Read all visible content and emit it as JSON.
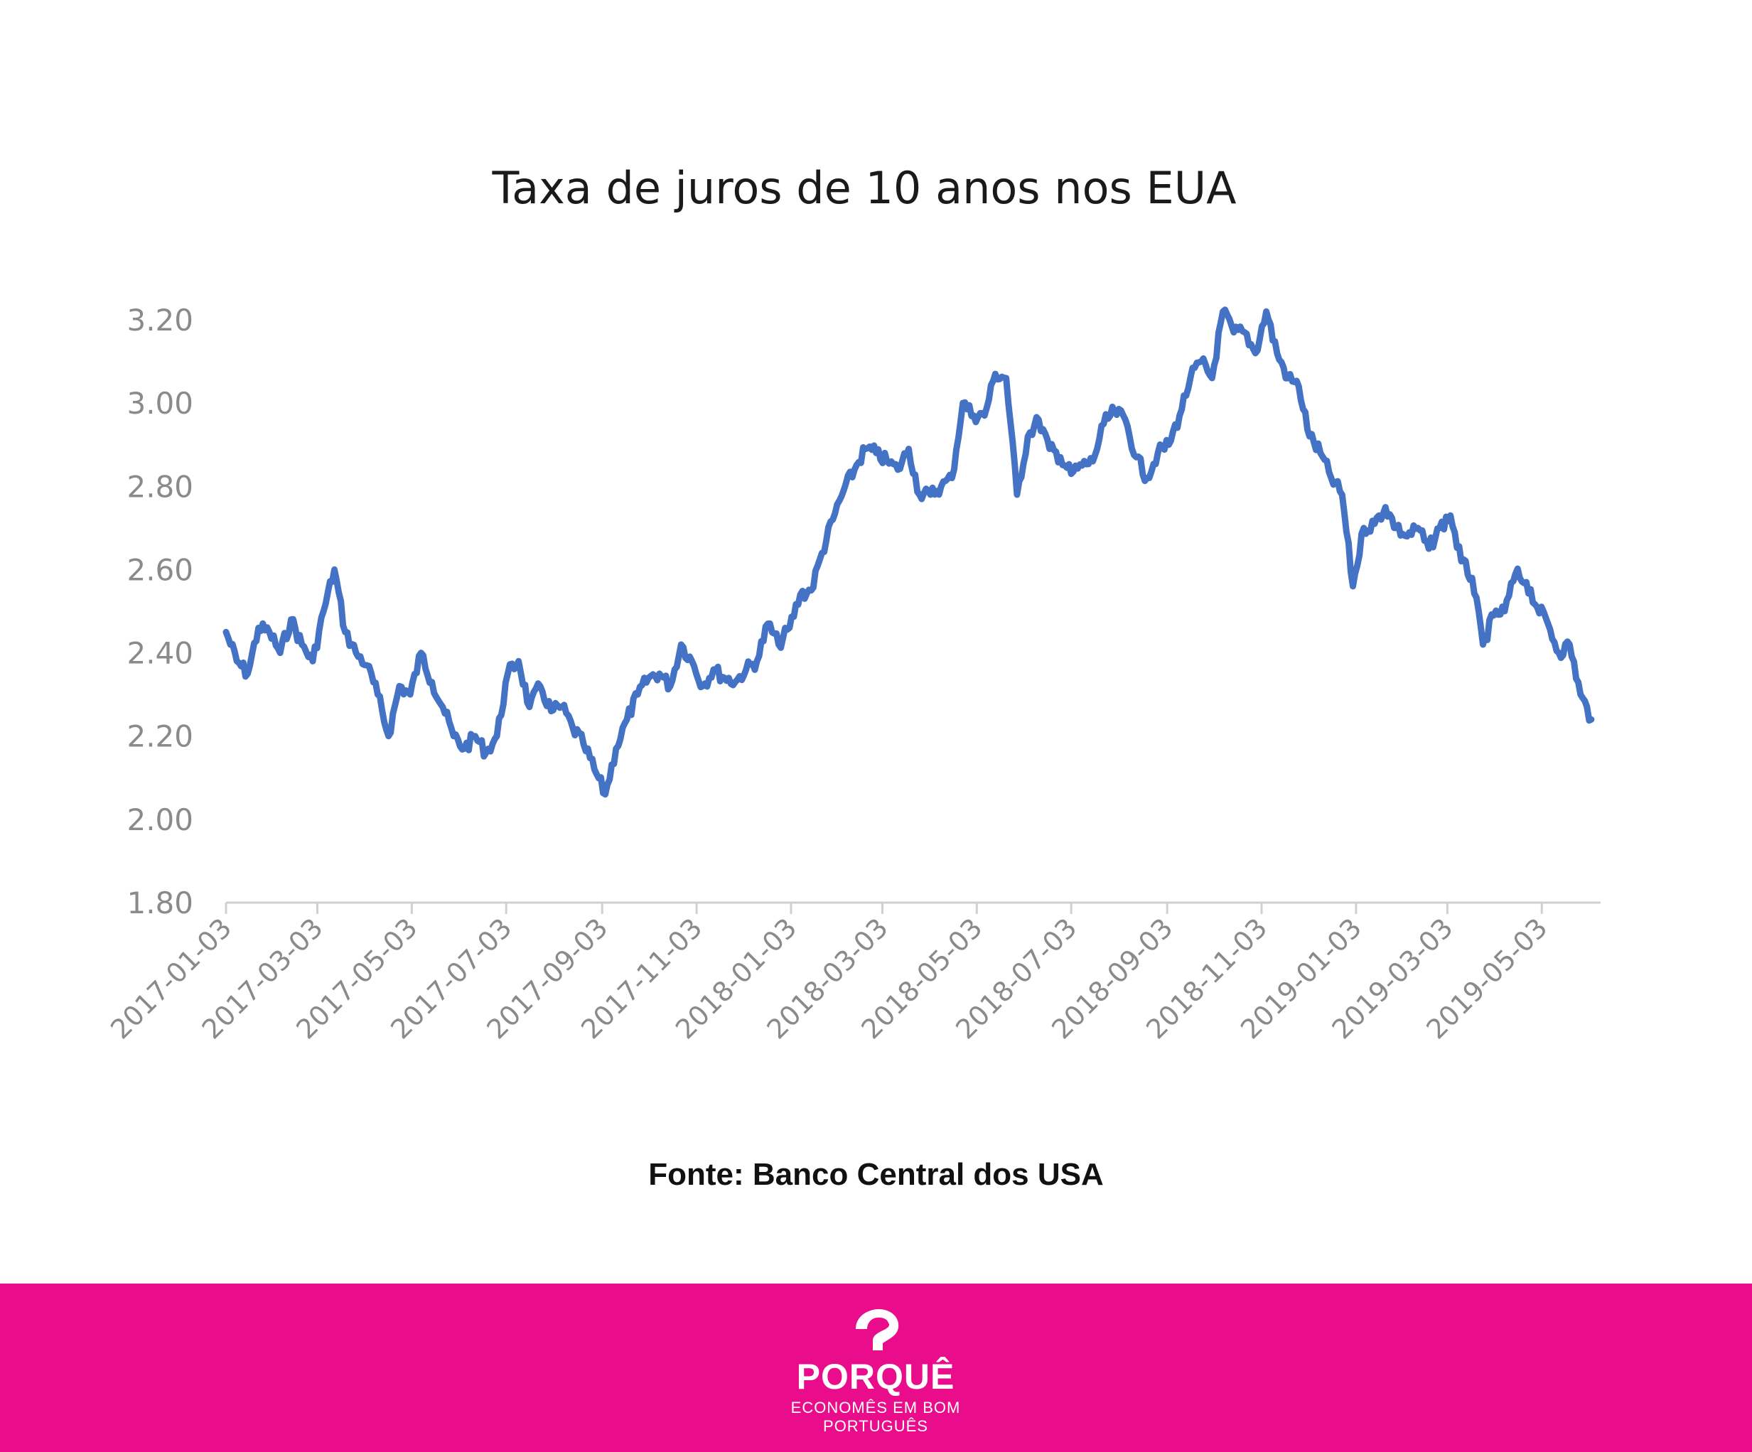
{
  "chart_data": {
    "type": "line",
    "title": "Taxa de juros de 10 anos nos EUA",
    "xlabel": "",
    "ylabel": "",
    "ylim": [
      1.8,
      3.2
    ],
    "yticks": [
      "3.20",
      "3.00",
      "2.80",
      "2.60",
      "2.40",
      "2.20",
      "2.00",
      "1.80"
    ],
    "xticks": [
      "2017-01-03",
      "2017-03-03",
      "2017-05-03",
      "2017-07-03",
      "2017-09-03",
      "2017-11-03",
      "2018-01-03",
      "2018-03-03",
      "2018-05-03",
      "2018-07-03",
      "2018-09-03",
      "2018-11-03",
      "2019-01-03",
      "2019-03-03",
      "2019-05-03"
    ],
    "grid": false,
    "line_color": "#4472c4",
    "series": [
      {
        "points": [
          [
            "2017-01-03",
            2.45
          ],
          [
            "2017-01-10",
            2.38
          ],
          [
            "2017-01-17",
            2.35
          ],
          [
            "2017-01-24",
            2.46
          ],
          [
            "2017-01-31",
            2.45
          ],
          [
            "2017-02-07",
            2.4
          ],
          [
            "2017-02-14",
            2.48
          ],
          [
            "2017-02-21",
            2.42
          ],
          [
            "2017-02-28",
            2.38
          ],
          [
            "2017-03-07",
            2.5
          ],
          [
            "2017-03-14",
            2.6
          ],
          [
            "2017-03-21",
            2.45
          ],
          [
            "2017-03-28",
            2.4
          ],
          [
            "2017-04-04",
            2.37
          ],
          [
            "2017-04-11",
            2.3
          ],
          [
            "2017-04-18",
            2.2
          ],
          [
            "2017-04-25",
            2.32
          ],
          [
            "2017-05-02",
            2.3
          ],
          [
            "2017-05-09",
            2.4
          ],
          [
            "2017-05-16",
            2.33
          ],
          [
            "2017-05-23",
            2.27
          ],
          [
            "2017-05-30",
            2.2
          ],
          [
            "2017-06-06",
            2.17
          ],
          [
            "2017-06-13",
            2.2
          ],
          [
            "2017-06-20",
            2.16
          ],
          [
            "2017-06-27",
            2.2
          ],
          [
            "2017-07-04",
            2.35
          ],
          [
            "2017-07-11",
            2.38
          ],
          [
            "2017-07-18",
            2.27
          ],
          [
            "2017-07-25",
            2.32
          ],
          [
            "2017-08-01",
            2.26
          ],
          [
            "2017-08-08",
            2.27
          ],
          [
            "2017-08-15",
            2.22
          ],
          [
            "2017-08-22",
            2.18
          ],
          [
            "2017-08-29",
            2.12
          ],
          [
            "2017-09-05",
            2.06
          ],
          [
            "2017-09-12",
            2.17
          ],
          [
            "2017-09-19",
            2.24
          ],
          [
            "2017-09-26",
            2.3
          ],
          [
            "2017-10-03",
            2.34
          ],
          [
            "2017-10-10",
            2.35
          ],
          [
            "2017-10-17",
            2.32
          ],
          [
            "2017-10-24",
            2.42
          ],
          [
            "2017-10-31",
            2.38
          ],
          [
            "2017-11-07",
            2.32
          ],
          [
            "2017-11-14",
            2.36
          ],
          [
            "2017-11-21",
            2.34
          ],
          [
            "2017-11-28",
            2.33
          ],
          [
            "2017-12-05",
            2.36
          ],
          [
            "2017-12-12",
            2.38
          ],
          [
            "2017-12-19",
            2.47
          ],
          [
            "2017-12-26",
            2.42
          ],
          [
            "2018-01-02",
            2.46
          ],
          [
            "2018-01-09",
            2.54
          ],
          [
            "2018-01-16",
            2.55
          ],
          [
            "2018-01-23",
            2.64
          ],
          [
            "2018-01-30",
            2.72
          ],
          [
            "2018-02-06",
            2.79
          ],
          [
            "2018-02-13",
            2.84
          ],
          [
            "2018-02-20",
            2.89
          ],
          [
            "2018-02-27",
            2.88
          ],
          [
            "2018-03-06",
            2.86
          ],
          [
            "2018-03-13",
            2.84
          ],
          [
            "2018-03-20",
            2.89
          ],
          [
            "2018-03-27",
            2.78
          ],
          [
            "2018-04-03",
            2.78
          ],
          [
            "2018-04-10",
            2.8
          ],
          [
            "2018-04-17",
            2.82
          ],
          [
            "2018-04-24",
            3.0
          ],
          [
            "2018-05-01",
            2.97
          ],
          [
            "2018-05-08",
            2.97
          ],
          [
            "2018-05-15",
            3.07
          ],
          [
            "2018-05-22",
            3.06
          ],
          [
            "2018-05-29",
            2.78
          ],
          [
            "2018-06-05",
            2.92
          ],
          [
            "2018-06-12",
            2.96
          ],
          [
            "2018-06-19",
            2.89
          ],
          [
            "2018-06-26",
            2.87
          ],
          [
            "2018-07-03",
            2.83
          ],
          [
            "2018-07-10",
            2.85
          ],
          [
            "2018-07-17",
            2.86
          ],
          [
            "2018-07-24",
            2.95
          ],
          [
            "2018-07-31",
            2.98
          ],
          [
            "2018-08-07",
            2.96
          ],
          [
            "2018-08-14",
            2.87
          ],
          [
            "2018-08-21",
            2.82
          ],
          [
            "2018-08-28",
            2.88
          ],
          [
            "2018-09-04",
            2.9
          ],
          [
            "2018-09-11",
            2.97
          ],
          [
            "2018-09-18",
            3.06
          ],
          [
            "2018-09-25",
            3.1
          ],
          [
            "2018-10-02",
            3.06
          ],
          [
            "2018-10-09",
            3.22
          ],
          [
            "2018-10-16",
            3.17
          ],
          [
            "2018-10-23",
            3.17
          ],
          [
            "2018-10-30",
            3.12
          ],
          [
            "2018-11-06",
            3.22
          ],
          [
            "2018-11-13",
            3.12
          ],
          [
            "2018-11-20",
            3.06
          ],
          [
            "2018-11-27",
            3.04
          ],
          [
            "2018-12-04",
            2.92
          ],
          [
            "2018-12-11",
            2.88
          ],
          [
            "2018-12-18",
            2.82
          ],
          [
            "2018-12-25",
            2.78
          ],
          [
            "2019-01-01",
            2.56
          ],
          [
            "2019-01-08",
            2.7
          ],
          [
            "2019-01-15",
            2.71
          ],
          [
            "2019-01-22",
            2.75
          ],
          [
            "2019-01-29",
            2.7
          ],
          [
            "2019-02-05",
            2.68
          ],
          [
            "2019-02-12",
            2.7
          ],
          [
            "2019-02-19",
            2.65
          ],
          [
            "2019-02-26",
            2.7
          ],
          [
            "2019-03-05",
            2.73
          ],
          [
            "2019-03-12",
            2.62
          ],
          [
            "2019-03-19",
            2.58
          ],
          [
            "2019-03-26",
            2.42
          ],
          [
            "2019-04-02",
            2.49
          ],
          [
            "2019-04-09",
            2.5
          ],
          [
            "2019-04-16",
            2.59
          ],
          [
            "2019-04-23",
            2.57
          ],
          [
            "2019-04-30",
            2.51
          ],
          [
            "2019-05-07",
            2.47
          ],
          [
            "2019-05-14",
            2.4
          ],
          [
            "2019-05-21",
            2.42
          ],
          [
            "2019-05-28",
            2.3
          ],
          [
            "2019-06-04",
            2.24
          ]
        ]
      }
    ]
  },
  "source": "Fonte: Banco Central dos USA",
  "logo": {
    "wordmark": "PORQUÊ",
    "tagline": "ECONOMÊS EM BOM PORTUGUÊS"
  },
  "colors": {
    "footer": "#e90d8b",
    "line": "#4472c4"
  }
}
